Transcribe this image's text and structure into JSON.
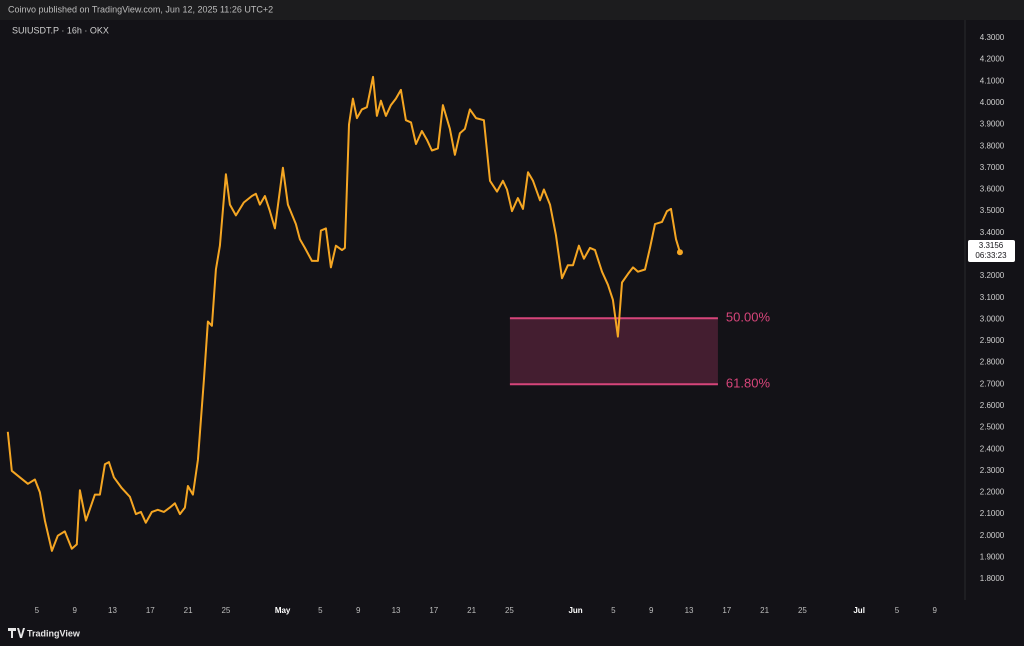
{
  "header": "Coinvo published on TradingView.com, Jun 12, 2025 11:26 UTC+2",
  "footer": "TradingView",
  "chart_data": {
    "type": "line",
    "title": "SUIUSDT.P · 16h · OKX",
    "color": "#f5a623",
    "x": [
      0.93,
      1.35,
      2.2,
      3.05,
      3.79,
      4.32,
      4.85,
      5.59,
      6.22,
      6.96,
      7.7,
      8.23,
      8.55,
      9.19,
      10.14,
      10.67,
      11.2,
      11.62,
      12.15,
      12.99,
      13.84,
      14.48,
      15.01,
      15.53,
      16.17,
      16.8,
      17.44,
      18.07,
      18.6,
      19.13,
      19.66,
      19.98,
      20.51,
      21.04,
      21.67,
      22.1,
      22.52,
      22.94,
      23.37,
      24.0,
      24.42,
      25.06,
      25.9,
      26.75,
      27.17,
      27.6,
      28.13,
      28.66,
      29.19,
      30.03,
      30.56,
      31.41,
      31.83,
      32.36,
      33.1,
      33.73,
      34.05,
      34.58,
      35.11,
      35.64,
      36.28,
      36.59,
      37.02,
      37.44,
      37.86,
      38.39,
      38.92,
      39.56,
      39.98,
      40.4,
      40.93,
      41.46,
      41.99,
      42.52,
      43.05,
      43.58,
      44.11,
      44.74,
      45.27,
      45.8,
      46.43,
      46.96,
      47.7,
      48.23,
      48.76,
      49.29,
      49.82,
      50.46,
      51.3,
      51.94,
      52.68,
      53.31,
      53.74,
      54.27,
      54.9,
      55.43,
      55.96,
      56.49,
      57.23,
      57.65,
      58.29,
      58.92,
      59.56,
      60.19,
      60.72,
      61.35,
      61.88,
      62.52,
      63.05,
      63.79,
      64.42,
      64.95,
      65.48,
      65.91,
      66.54,
      67.07,
      67.6,
      68.34,
      68.87,
      69.4,
      70.14,
      70.67,
      71.09,
      71.62,
      72.04
    ],
    "values": [
      2.48,
      2.3,
      2.27,
      2.24,
      2.26,
      2.2,
      2.07,
      1.93,
      2.0,
      2.02,
      1.94,
      1.96,
      2.21,
      2.07,
      2.19,
      2.19,
      2.33,
      2.34,
      2.27,
      2.22,
      2.18,
      2.1,
      2.11,
      2.06,
      2.11,
      2.12,
      2.11,
      2.13,
      2.15,
      2.1,
      2.13,
      2.23,
      2.19,
      2.35,
      2.72,
      2.99,
      2.97,
      3.23,
      3.34,
      3.67,
      3.53,
      3.48,
      3.54,
      3.57,
      3.58,
      3.53,
      3.57,
      3.5,
      3.42,
      3.7,
      3.53,
      3.44,
      3.37,
      3.33,
      3.27,
      3.27,
      3.41,
      3.42,
      3.24,
      3.34,
      3.32,
      3.33,
      3.9,
      4.02,
      3.93,
      3.97,
      3.98,
      4.12,
      3.94,
      4.01,
      3.94,
      3.99,
      4.02,
      4.06,
      3.92,
      3.91,
      3.81,
      3.87,
      3.83,
      3.78,
      3.79,
      3.99,
      3.88,
      3.76,
      3.86,
      3.88,
      3.97,
      3.93,
      3.92,
      3.64,
      3.59,
      3.64,
      3.6,
      3.5,
      3.56,
      3.51,
      3.68,
      3.64,
      3.55,
      3.6,
      3.53,
      3.39,
      3.19,
      3.25,
      3.25,
      3.34,
      3.28,
      3.33,
      3.32,
      3.22,
      3.16,
      3.09,
      2.92,
      3.17,
      3.21,
      3.24,
      3.22,
      3.23,
      3.33,
      3.44,
      3.45,
      3.5,
      3.51,
      3.37,
      3.31
    ],
    "xlim": [
      0.1,
      102.2
    ],
    "ylim": [
      1.703,
      4.36
    ],
    "xticks": [
      {
        "value": 4,
        "label": "5"
      },
      {
        "value": 8,
        "label": "9"
      },
      {
        "value": 12,
        "label": "13"
      },
      {
        "value": 16,
        "label": "17"
      },
      {
        "value": 20,
        "label": "21"
      },
      {
        "value": 24,
        "label": "25"
      },
      {
        "value": 30,
        "label": "May"
      },
      {
        "value": 34,
        "label": "5"
      },
      {
        "value": 38,
        "label": "9"
      },
      {
        "value": 42,
        "label": "13"
      },
      {
        "value": 46,
        "label": "17"
      },
      {
        "value": 50,
        "label": "21"
      },
      {
        "value": 54,
        "label": "25"
      },
      {
        "value": 61,
        "label": "Jun"
      },
      {
        "value": 65,
        "label": "5"
      },
      {
        "value": 69,
        "label": "9"
      },
      {
        "value": 73,
        "label": "13"
      },
      {
        "value": 77,
        "label": "17"
      },
      {
        "value": 81,
        "label": "21"
      },
      {
        "value": 85,
        "label": "25"
      },
      {
        "value": 91,
        "label": "Jul"
      },
      {
        "value": 95,
        "label": "5"
      },
      {
        "value": 99,
        "label": "9"
      }
    ],
    "yticks": [
      {
        "value": 1.8,
        "label": "1.8000"
      },
      {
        "value": 1.9,
        "label": "1.9000"
      },
      {
        "value": 2.0,
        "label": "2.0000"
      },
      {
        "value": 2.1,
        "label": "2.1000"
      },
      {
        "value": 2.2,
        "label": "2.2000"
      },
      {
        "value": 2.3,
        "label": "2.3000"
      },
      {
        "value": 2.4,
        "label": "2.4000"
      },
      {
        "value": 2.5,
        "label": "2.5000"
      },
      {
        "value": 2.6,
        "label": "2.6000"
      },
      {
        "value": 2.7,
        "label": "2.7000"
      },
      {
        "value": 2.8,
        "label": "2.8000"
      },
      {
        "value": 2.9,
        "label": "2.9000"
      },
      {
        "value": 3.0,
        "label": "3.0000"
      },
      {
        "value": 3.1,
        "label": "3.1000"
      },
      {
        "value": 3.2,
        "label": "3.2000"
      },
      {
        "value": 3.3,
        "label": "3.3000"
      },
      {
        "value": 3.4,
        "label": "3.4000"
      },
      {
        "value": 3.5,
        "label": "3.5000"
      },
      {
        "value": 3.6,
        "label": "3.6000"
      },
      {
        "value": 3.7,
        "label": "3.7000"
      },
      {
        "value": 3.8,
        "label": "3.8000"
      },
      {
        "value": 3.9,
        "label": "3.9000"
      },
      {
        "value": 4.0,
        "label": "4.0000"
      },
      {
        "value": 4.1,
        "label": "4.1000"
      },
      {
        "value": 4.2,
        "label": "4.2000"
      },
      {
        "value": 4.3,
        "label": "4.3000"
      }
    ],
    "last_price": 3.3156,
    "countdown": "06:33:23",
    "zone": {
      "x": [
        54.05,
        76.06
      ],
      "color": "#d6457a",
      "levels": [
        {
          "value": 3.005,
          "label": "50.00%"
        },
        {
          "value": 2.7,
          "label": "61.80%"
        }
      ]
    }
  }
}
